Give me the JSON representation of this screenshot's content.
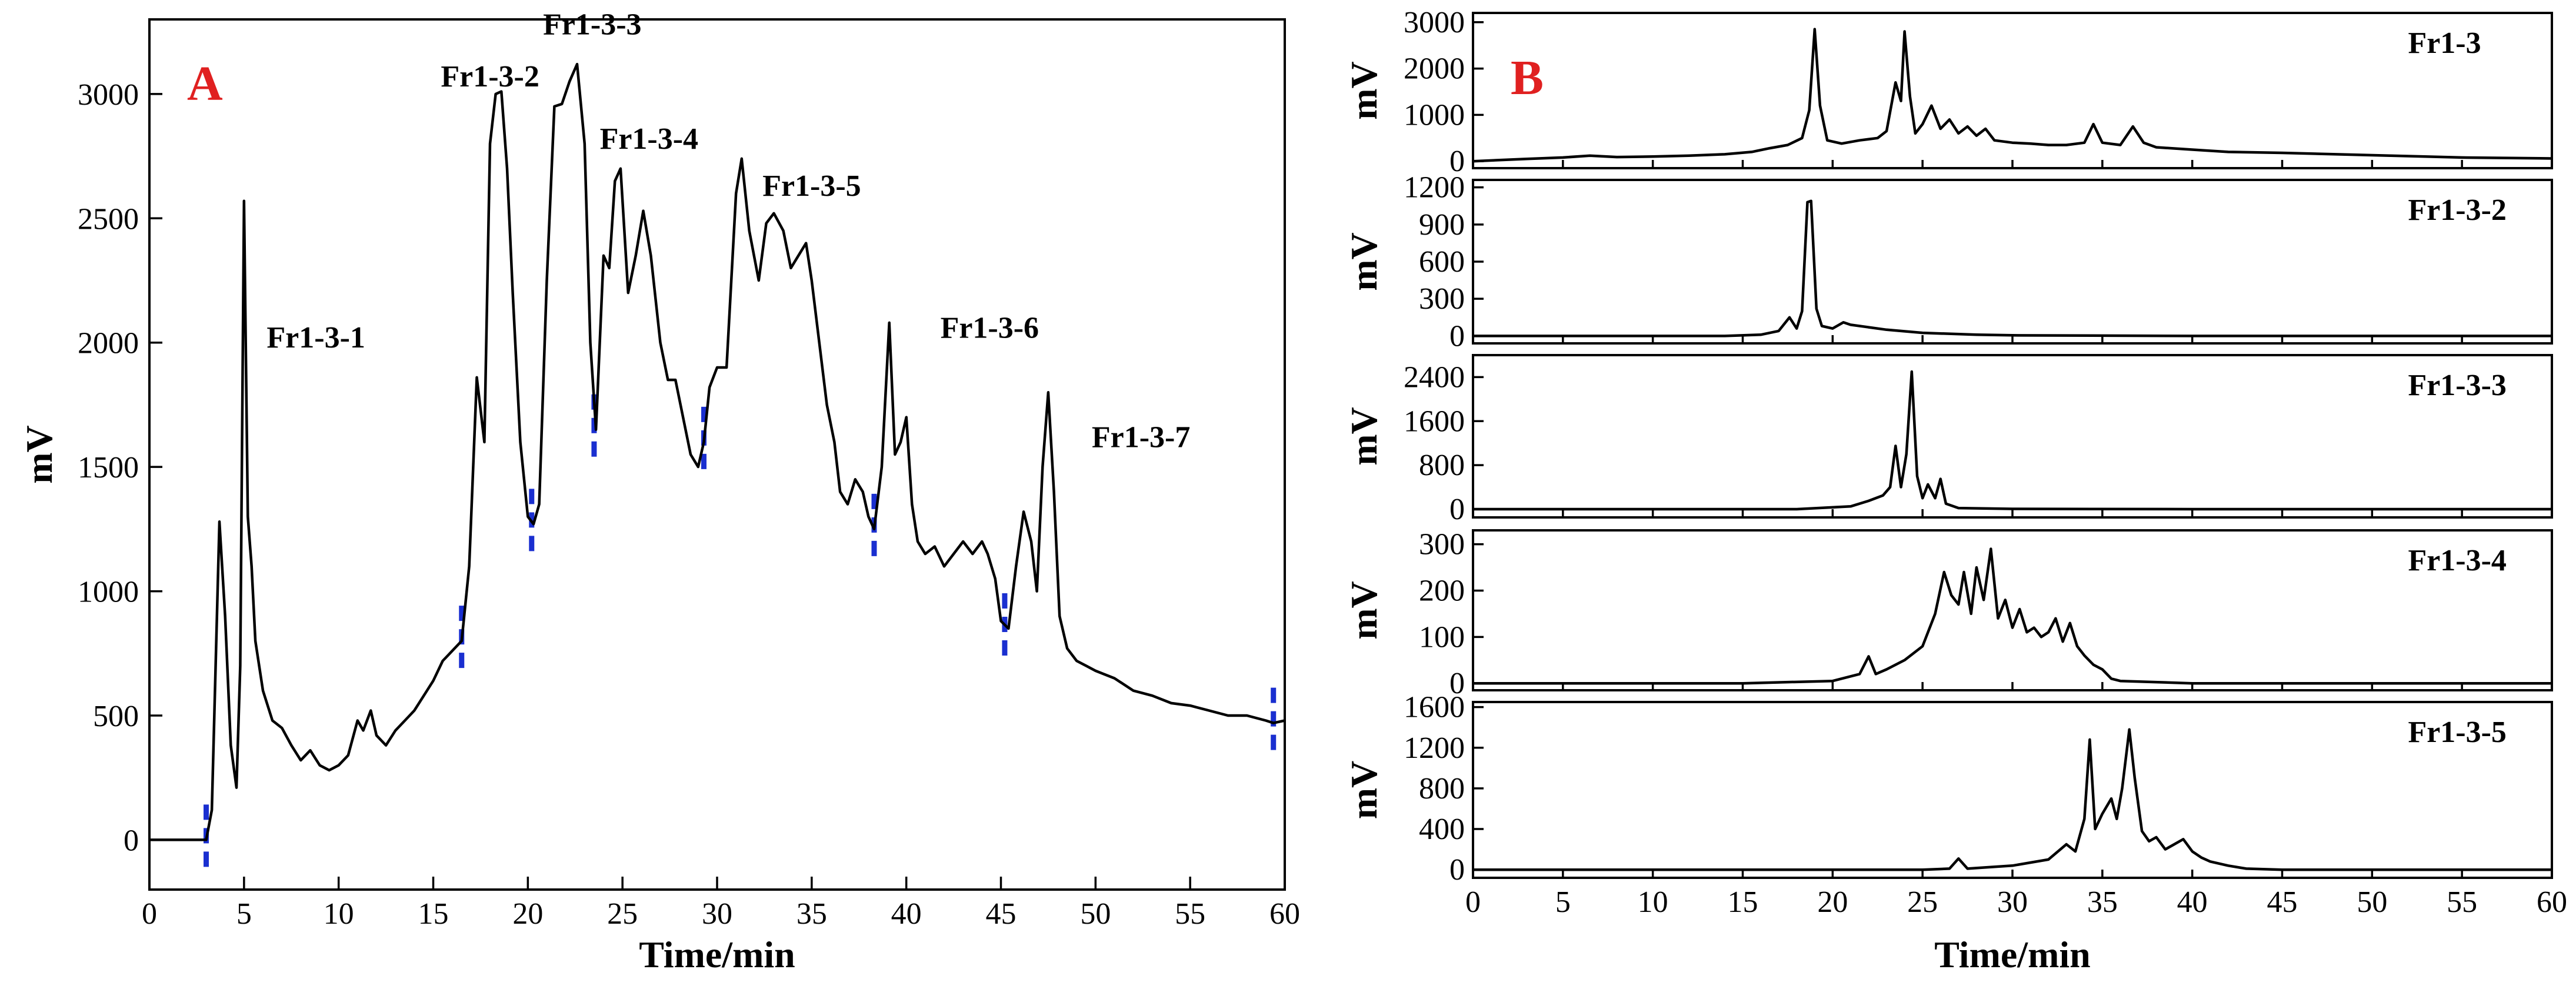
{
  "chart_data": [
    {
      "panel": "A",
      "type": "line",
      "xlabel": "Time/min",
      "ylabel": "mV",
      "xlim": [
        0,
        60
      ],
      "ylim": [
        -200,
        3300
      ],
      "x_ticks": [
        0,
        5,
        10,
        15,
        20,
        25,
        30,
        35,
        40,
        45,
        50,
        55,
        60
      ],
      "y_ticks": [
        0,
        500,
        1000,
        1500,
        2000,
        2500,
        3000
      ],
      "fraction_cut_times": [
        3.0,
        16.5,
        20.2,
        23.5,
        29.3,
        38.3,
        45.2,
        59.4
      ],
      "peak_labels": [
        {
          "text": "Fr1-3-1",
          "x": 6.2,
          "y": 1980
        },
        {
          "text": "Fr1-3-2",
          "x": 15.4,
          "y": 3030
        },
        {
          "text": "Fr1-3-3",
          "x": 20.8,
          "y": 3240
        },
        {
          "text": "Fr1-3-4",
          "x": 23.8,
          "y": 2780
        },
        {
          "text": "Fr1-3-5",
          "x": 32.4,
          "y": 2590
        },
        {
          "text": "Fr1-3-6",
          "x": 41.8,
          "y": 2020
        },
        {
          "text": "Fr1-3-7",
          "x": 49.8,
          "y": 1580
        }
      ],
      "series": [
        {
          "x": [
            0,
            2.5,
            3.0,
            3.3,
            3.7,
            4.0,
            4.3,
            4.6,
            4.8,
            5.0,
            5.2,
            5.4,
            5.6,
            6.0,
            6.5,
            7.0,
            7.5,
            8.0,
            8.5,
            9.0,
            9.5,
            10.0,
            10.5,
            11.0,
            11.3,
            11.7,
            12.0,
            12.5,
            13.0,
            13.5,
            14.0,
            14.5,
            15.0,
            15.5,
            16.0,
            16.5,
            16.9,
            17.3,
            17.7,
            18.0,
            18.3,
            18.6,
            18.9,
            19.2,
            19.6,
            20.0,
            20.3,
            20.6,
            21.0,
            21.4,
            21.8,
            22.2,
            22.6,
            23.0,
            23.3,
            23.6,
            24.0,
            24.3,
            24.6,
            24.9,
            25.3,
            25.7,
            26.1,
            26.5,
            27.0,
            27.4,
            27.8,
            28.2,
            28.6,
            29.0,
            29.3,
            29.6,
            30.0,
            30.5,
            31.0,
            31.3,
            31.7,
            32.2,
            32.6,
            33.0,
            33.5,
            33.9,
            34.3,
            34.7,
            35.0,
            35.4,
            35.8,
            36.2,
            36.5,
            36.9,
            37.3,
            37.7,
            38.0,
            38.3,
            38.7,
            39.1,
            39.4,
            39.7,
            40.0,
            40.3,
            40.6,
            41.0,
            41.5,
            42.0,
            42.5,
            43.0,
            43.5,
            44.0,
            44.3,
            44.7,
            45.0,
            45.4,
            45.8,
            46.2,
            46.6,
            46.9,
            47.2,
            47.5,
            47.8,
            48.1,
            48.5,
            49.0,
            49.5,
            50.0,
            51.0,
            52.0,
            53.0,
            54.0,
            55.0,
            56.0,
            57.0,
            58.0,
            59.0,
            59.4,
            60.0
          ],
          "y": [
            0,
            0,
            0,
            120,
            1280,
            900,
            380,
            210,
            700,
            2570,
            1300,
            1100,
            800,
            600,
            480,
            450,
            380,
            320,
            360,
            300,
            280,
            300,
            340,
            480,
            440,
            520,
            420,
            380,
            440,
            480,
            520,
            580,
            640,
            720,
            760,
            800,
            1100,
            1860,
            1600,
            2800,
            3000,
            3010,
            2700,
            2200,
            1600,
            1300,
            1270,
            1350,
            2250,
            2950,
            2960,
            3050,
            3120,
            2800,
            2000,
            1650,
            2350,
            2300,
            2650,
            2700,
            2200,
            2350,
            2530,
            2350,
            2000,
            1850,
            1850,
            1700,
            1550,
            1500,
            1600,
            1820,
            1900,
            1900,
            2600,
            2740,
            2450,
            2250,
            2480,
            2520,
            2450,
            2300,
            2350,
            2400,
            2250,
            2000,
            1750,
            1600,
            1400,
            1350,
            1450,
            1400,
            1300,
            1250,
            1500,
            2080,
            1550,
            1600,
            1700,
            1350,
            1200,
            1150,
            1180,
            1100,
            1150,
            1200,
            1150,
            1200,
            1150,
            1050,
            880,
            850,
            1100,
            1320,
            1200,
            1000,
            1500,
            1800,
            1400,
            900,
            770,
            720,
            700,
            680,
            650,
            600,
            580,
            550,
            540,
            520,
            500,
            500,
            480,
            470,
            480
          ]
        }
      ]
    },
    {
      "panel": "B",
      "type": "line",
      "xlabel": "Time/min",
      "ylabel": "mV",
      "xlim": [
        0,
        60
      ],
      "x_ticks": [
        0,
        5,
        10,
        15,
        20,
        25,
        30,
        35,
        40,
        45,
        50,
        55,
        60
      ],
      "subplots": [
        {
          "name": "Fr1-3",
          "ylim": [
            -150,
            3200
          ],
          "y_ticks": [
            0,
            1000,
            2000,
            3000
          ],
          "x": [
            0,
            3.0,
            5.0,
            6.5,
            8.0,
            10.0,
            12.0,
            14.0,
            15.5,
            16.5,
            17.5,
            18.3,
            18.7,
            19.0,
            19.3,
            19.7,
            20.5,
            21.5,
            22.5,
            23.0,
            23.5,
            23.8,
            24.0,
            24.3,
            24.6,
            25.0,
            25.5,
            26.0,
            26.5,
            27.0,
            27.5,
            28.0,
            28.5,
            29.0,
            30.0,
            31.0,
            32.0,
            33.0,
            34.0,
            34.5,
            35.0,
            36.0,
            36.7,
            37.3,
            38.0,
            40.0,
            42.0,
            45.0,
            48.0,
            51.0,
            55.0,
            60.0
          ],
          "y": [
            0,
            50,
            80,
            120,
            90,
            100,
            120,
            150,
            200,
            280,
            350,
            500,
            1100,
            2850,
            1200,
            450,
            380,
            450,
            500,
            650,
            1700,
            1300,
            2800,
            1400,
            600,
            800,
            1200,
            700,
            900,
            600,
            750,
            550,
            700,
            450,
            400,
            380,
            350,
            350,
            400,
            800,
            400,
            350,
            750,
            400,
            300,
            250,
            200,
            180,
            150,
            120,
            80,
            60
          ]
        },
        {
          "name": "Fr1-3-2",
          "ylim": [
            -60,
            1260
          ],
          "y_ticks": [
            0,
            300,
            600,
            900,
            1200
          ],
          "x": [
            0,
            14.0,
            16.0,
            17.0,
            17.6,
            18.0,
            18.3,
            18.6,
            18.8,
            19.1,
            19.4,
            20.0,
            20.6,
            21.0,
            22.0,
            23.0,
            25.0,
            28.0,
            30.0,
            40.0,
            50.0,
            60.0
          ],
          "y": [
            0,
            0,
            10,
            40,
            150,
            60,
            200,
            1080,
            1090,
            220,
            80,
            60,
            110,
            90,
            70,
            50,
            25,
            10,
            5,
            0,
            0,
            0
          ]
        },
        {
          "name": "Fr1-3-3",
          "ylim": [
            -150,
            2800
          ],
          "y_ticks": [
            0,
            800,
            1600,
            2400
          ],
          "x": [
            0,
            18.0,
            21.0,
            22.0,
            22.8,
            23.2,
            23.5,
            23.8,
            24.1,
            24.4,
            24.7,
            25.0,
            25.3,
            25.7,
            26.0,
            26.3,
            27.0,
            30.0,
            40.0,
            60.0
          ],
          "y": [
            0,
            0,
            50,
            150,
            250,
            400,
            1150,
            400,
            1000,
            2500,
            600,
            200,
            450,
            200,
            550,
            100,
            20,
            5,
            0,
            0
          ],
          "note": "subplot axis ticks shown: 0, 800, 1600, 2400"
        },
        {
          "name": "Fr1-3-4",
          "ylim": [
            -15,
            330
          ],
          "y_ticks": [
            0,
            100,
            200,
            300
          ],
          "x": [
            0,
            15.0,
            20.0,
            21.5,
            22.0,
            22.4,
            23.0,
            24.0,
            25.0,
            25.7,
            26.2,
            26.6,
            27.0,
            27.3,
            27.7,
            28.0,
            28.4,
            28.8,
            29.2,
            29.6,
            30.0,
            30.4,
            30.8,
            31.2,
            31.6,
            32.0,
            32.4,
            32.8,
            33.2,
            33.6,
            34.0,
            34.5,
            35.0,
            35.5,
            36.0,
            40.0,
            50.0,
            60.0
          ],
          "y": [
            0,
            0,
            5,
            20,
            58,
            20,
            30,
            50,
            80,
            150,
            240,
            190,
            170,
            240,
            150,
            250,
            180,
            290,
            140,
            180,
            120,
            160,
            110,
            120,
            100,
            110,
            140,
            90,
            130,
            80,
            60,
            40,
            30,
            10,
            5,
            0,
            0,
            0
          ]
        },
        {
          "name": "Fr1-3-5",
          "ylim": [
            -80,
            1650
          ],
          "y_ticks": [
            0,
            400,
            800,
            1200,
            1600
          ],
          "x": [
            0,
            25.0,
            26.5,
            27.0,
            27.5,
            30.0,
            32.0,
            33.0,
            33.5,
            34.0,
            34.3,
            34.6,
            35.0,
            35.5,
            35.8,
            36.1,
            36.5,
            36.8,
            37.2,
            37.6,
            38.0,
            38.5,
            39.0,
            39.5,
            40.0,
            40.5,
            41.0,
            42.0,
            43.0,
            45.0,
            50.0,
            60.0
          ],
          "y": [
            0,
            0,
            10,
            110,
            10,
            40,
            100,
            250,
            180,
            500,
            1280,
            400,
            550,
            700,
            500,
            800,
            1380,
            900,
            380,
            280,
            320,
            200,
            250,
            300,
            180,
            120,
            80,
            40,
            10,
            0,
            0,
            0
          ]
        }
      ]
    }
  ]
}
